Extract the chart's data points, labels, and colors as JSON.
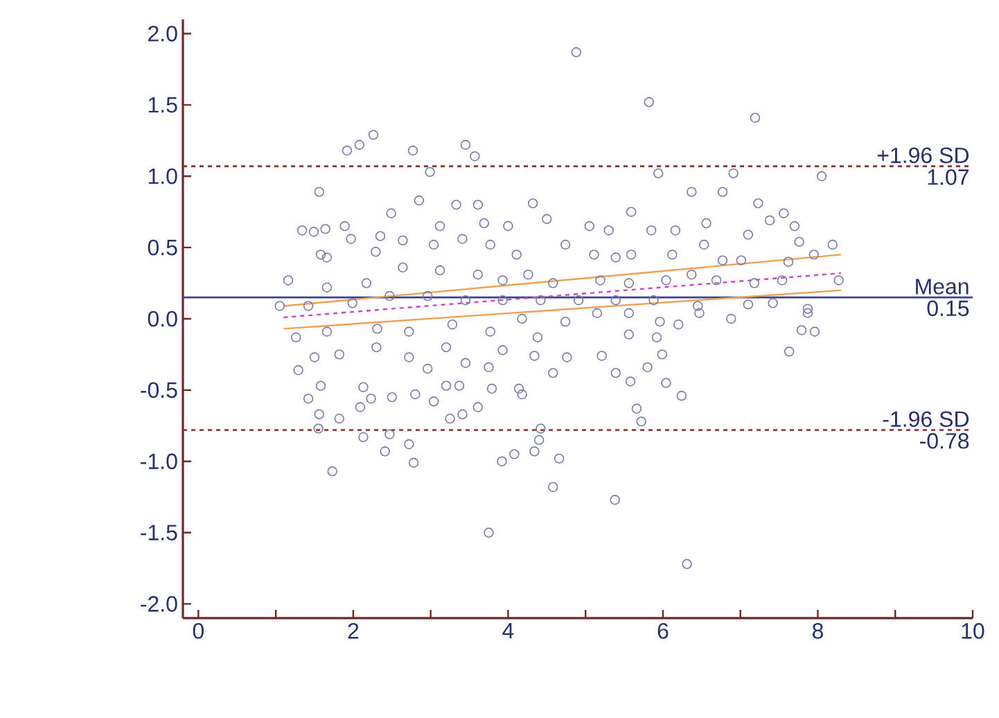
{
  "chart_data": {
    "type": "scatter",
    "marker": "circle",
    "xlim": [
      -0.2,
      10
    ],
    "ylim": [
      -2.1,
      2.1
    ],
    "xticks": [
      0,
      {
        "value": 1,
        "label": null
      },
      2,
      {
        "value": 3,
        "label": null
      },
      4,
      {
        "value": 5,
        "label": null
      },
      6,
      {
        "value": 7,
        "label": null
      },
      8,
      {
        "value": 9,
        "label": null
      },
      10
    ],
    "yticks": [
      {
        "value": -2,
        "label": "-2.0"
      },
      {
        "value": -1.5,
        "label": "-1.5"
      },
      {
        "value": -1,
        "label": "-1.0"
      },
      {
        "value": -0.5,
        "label": "-0.5"
      },
      {
        "value": 0,
        "label": "0.0"
      },
      {
        "value": 0.5,
        "label": "0.5"
      },
      {
        "value": 1,
        "label": "1.0"
      },
      {
        "value": 1.5,
        "label": "1.5"
      },
      {
        "value": 2,
        "label": "2.0"
      }
    ],
    "series": [
      {
        "color": "#7a7aa8",
        "x": [
          4.88,
          5.82,
          7.19,
          2.26,
          2.08,
          1.92,
          2.77,
          3.45,
          3.57,
          2.99,
          5.94,
          6.91,
          8.05,
          1.56,
          6.37,
          6.77,
          7.23,
          5.59,
          4.32,
          3.61,
          3.33,
          2.85,
          7.56,
          7.38,
          7.7,
          2.49,
          1.34,
          1.49,
          1.64,
          1.89,
          1.97,
          2.35,
          2.64,
          3.12,
          3.69,
          4.0,
          4.5,
          5.05,
          5.3,
          5.85,
          6.16,
          6.56,
          7.1,
          7.76,
          8.19,
          1.58,
          1.66,
          2.29,
          3.04,
          3.41,
          3.77,
          4.11,
          4.74,
          5.11,
          5.39,
          5.59,
          6.12,
          6.53,
          6.77,
          7.01,
          7.62,
          7.95,
          1.16,
          1.66,
          2.17,
          2.64,
          3.12,
          3.61,
          3.93,
          4.26,
          4.58,
          5.19,
          5.56,
          6.04,
          6.37,
          6.69,
          7.18,
          7.54,
          8.27,
          1.05,
          1.42,
          1.99,
          2.47,
          2.96,
          3.45,
          3.93,
          4.42,
          4.91,
          5.39,
          5.88,
          6.45,
          7.1,
          7.42,
          7.87,
          1.26,
          1.66,
          2.31,
          2.72,
          3.28,
          3.77,
          4.18,
          4.74,
          5.15,
          5.56,
          5.96,
          6.2,
          6.47,
          6.88,
          7.87,
          7.79,
          7.96,
          5.56,
          5.92,
          1.82,
          1.5,
          2.3,
          2.72,
          3.2,
          3.45,
          3.93,
          4.38,
          4.34,
          4.76,
          5.21,
          5.99,
          7.63,
          1.29,
          2.96,
          3.75,
          4.58,
          5.39,
          5.58,
          5.8,
          6.04,
          6.24,
          1.42,
          1.58,
          2.13,
          2.23,
          2.5,
          2.8,
          3.04,
          3.2,
          3.37,
          3.61,
          3.79,
          4.14,
          4.18,
          1.56,
          1.82,
          2.09,
          3.25,
          3.41,
          5.66,
          5.72,
          1.55,
          4.42,
          2.13,
          2.47,
          2.72,
          2.41,
          2.78,
          1.73,
          3.92,
          4.08,
          4.34,
          4.4,
          4.66,
          4.58,
          5.38,
          3.75,
          6.31
        ],
        "values": [
          1.87,
          1.52,
          1.41,
          1.29,
          1.22,
          1.18,
          1.18,
          1.22,
          1.14,
          1.03,
          1.02,
          1.02,
          1.0,
          0.89,
          0.89,
          0.89,
          0.81,
          0.75,
          0.81,
          0.8,
          0.8,
          0.83,
          0.74,
          0.69,
          0.65,
          0.74,
          0.62,
          0.61,
          0.63,
          0.65,
          0.56,
          0.58,
          0.55,
          0.65,
          0.67,
          0.65,
          0.7,
          0.65,
          0.62,
          0.62,
          0.62,
          0.67,
          0.59,
          0.54,
          0.52,
          0.45,
          0.43,
          0.47,
          0.52,
          0.56,
          0.52,
          0.45,
          0.52,
          0.45,
          0.43,
          0.45,
          0.45,
          0.52,
          0.41,
          0.41,
          0.4,
          0.45,
          0.27,
          0.22,
          0.25,
          0.36,
          0.34,
          0.31,
          0.27,
          0.31,
          0.25,
          0.27,
          0.25,
          0.27,
          0.31,
          0.27,
          0.25,
          0.27,
          0.27,
          0.09,
          0.09,
          0.11,
          0.16,
          0.16,
          0.13,
          0.13,
          0.13,
          0.13,
          0.13,
          0.13,
          0.09,
          0.1,
          0.11,
          0.07,
          -0.13,
          -0.09,
          -0.07,
          -0.09,
          -0.04,
          -0.09,
          0.0,
          -0.02,
          0.04,
          0.04,
          -0.02,
          -0.04,
          0.04,
          0.0,
          0.04,
          -0.08,
          -0.09,
          -0.11,
          -0.13,
          -0.25,
          -0.27,
          -0.2,
          -0.27,
          -0.2,
          -0.31,
          -0.22,
          -0.13,
          -0.26,
          -0.27,
          -0.26,
          -0.25,
          -0.23,
          -0.36,
          -0.35,
          -0.34,
          -0.38,
          -0.38,
          -0.44,
          -0.34,
          -0.45,
          -0.54,
          -0.56,
          -0.47,
          -0.48,
          -0.56,
          -0.55,
          -0.53,
          -0.58,
          -0.47,
          -0.47,
          -0.62,
          -0.49,
          -0.49,
          -0.53,
          -0.67,
          -0.7,
          -0.62,
          -0.7,
          -0.67,
          -0.63,
          -0.72,
          -0.77,
          -0.77,
          -0.83,
          -0.81,
          -0.88,
          -0.93,
          -1.01,
          -1.07,
          -1.0,
          -0.95,
          -0.93,
          -0.85,
          -0.98,
          -1.18,
          -1.27,
          -1.5,
          -1.72
        ]
      },
      {
        "type": "line",
        "marker": "none",
        "color": "#f0a050",
        "x": [
          1.1,
          8.3
        ],
        "values": [
          0.09,
          0.45
        ]
      },
      {
        "type": "line",
        "marker": "none",
        "color": "#f0a050",
        "x": [
          1.1,
          8.3
        ],
        "values": [
          -0.07,
          0.2
        ]
      },
      {
        "type": "line",
        "marker": "none",
        "line_style": "dashed",
        "color": "#cc44cc",
        "x": [
          1.1,
          8.3
        ],
        "values": [
          0.01,
          0.32
        ]
      }
    ],
    "ref_lines": [
      {
        "axis": "y",
        "value": 1.07,
        "label": "+1.96 SD",
        "color": "#8b2a2a",
        "line_style": "dashed"
      },
      {
        "axis": "y",
        "value": 0.15,
        "label": "Mean",
        "color": "#404090",
        "line_style": "solid"
      },
      {
        "axis": "y",
        "value": -0.78,
        "label": "-1.96 SD",
        "color": "#8b2a2a",
        "line_style": "dashed"
      }
    ],
    "annotations": [
      "1.07",
      "0.15",
      "-0.78"
    ]
  }
}
